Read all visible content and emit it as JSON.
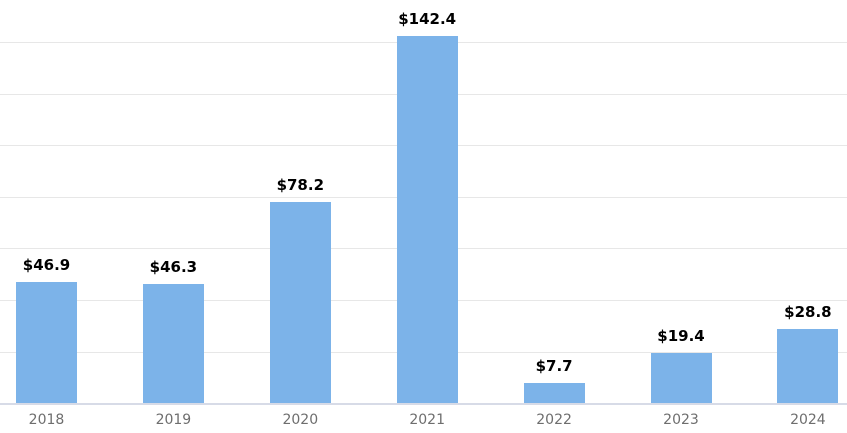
{
  "chart_data": {
    "type": "bar",
    "categories": [
      "2018",
      "2019",
      "2020",
      "2021",
      "2022",
      "2023",
      "2024"
    ],
    "values": [
      46.9,
      46.3,
      78.2,
      142.4,
      7.7,
      19.4,
      28.8
    ],
    "data_labels": [
      "$46.9",
      "$46.3",
      "$78.2",
      "$142.4",
      "$7.7",
      "$19.4",
      "$28.8"
    ],
    "title": "",
    "xlabel": "",
    "ylabel": "",
    "ylim": [
      0,
      156
    ],
    "gridline_values": [
      20,
      40,
      60,
      80,
      100,
      120,
      140
    ],
    "gridline_step": 20,
    "grid": true,
    "legend_position": "none",
    "y_tick_labels_visible": false
  },
  "colors": {
    "background": "#FFFFFF",
    "bar_fill": "#7CB3E9",
    "gridline": "#E7E7E7",
    "axis_line": "#D7DBE7",
    "value_label_text": "#000000",
    "category_label_text": "#6E6E6E"
  }
}
